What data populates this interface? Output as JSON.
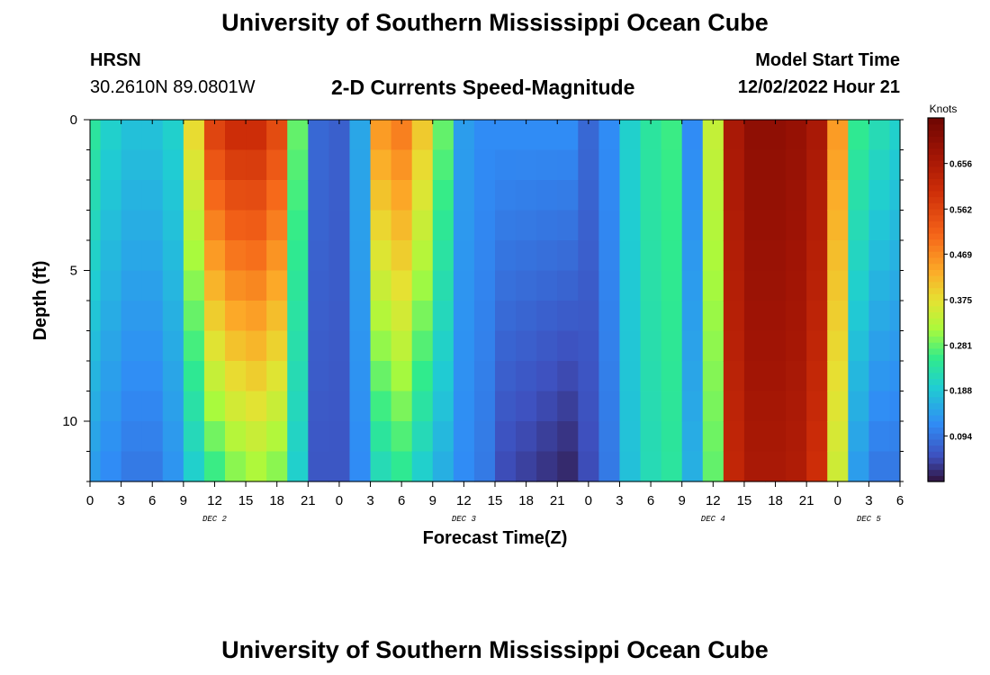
{
  "header": {
    "title": "University of Southern Mississippi Ocean Cube",
    "station": "HRSN",
    "coordinates": "30.2610N  89.0801W",
    "subtitle": "2-D Currents Speed-Magnitude",
    "model_start_label": "Model Start Time",
    "model_start_time": "12/02/2022 Hour 21"
  },
  "footer": {
    "title": "University of Southern Mississippi Ocean Cube"
  },
  "chart_data": {
    "type": "heatmap",
    "title": "2-D Currents Speed-Magnitude",
    "xlabel": "Forecast Time(Z)",
    "ylabel": "Depth (ft)",
    "x_tick_labels": [
      "0",
      "3",
      "6",
      "9",
      "12",
      "15",
      "18",
      "21",
      "0",
      "3",
      "6",
      "9",
      "12",
      "15",
      "18",
      "21",
      "0",
      "3",
      "6",
      "9",
      "12",
      "15",
      "18",
      "21",
      "0",
      "3",
      "6"
    ],
    "y_tick_labels": [
      "0",
      "5",
      "10"
    ],
    "y_ticks": [
      0,
      5,
      10
    ],
    "ylim": [
      0,
      12
    ],
    "xlim_hours": [
      0,
      78
    ],
    "date_labels": [
      {
        "label": "DEC 2",
        "hour": 12
      },
      {
        "label": "DEC 3",
        "hour": 36
      },
      {
        "label": "DEC 4",
        "hour": 60
      },
      {
        "label": "DEC 5",
        "hour": 75
      }
    ],
    "colorbar": {
      "label": "Knots",
      "range": [
        0,
        0.75
      ],
      "ticks": [
        "0.656",
        "0.562",
        "0.469",
        "0.375",
        "0.281",
        "0.188",
        "0.094"
      ],
      "tick_values": [
        0.656,
        0.562,
        0.469,
        0.375,
        0.281,
        0.188,
        0.094
      ]
    },
    "profile_hours": [
      0,
      2,
      4,
      6,
      8,
      10,
      12,
      14,
      16,
      18,
      20,
      22,
      24,
      26,
      28,
      30,
      32,
      34,
      36,
      38,
      40,
      42,
      44,
      46,
      48,
      50,
      52,
      54,
      56,
      58,
      60,
      62,
      64,
      66,
      68,
      70,
      72,
      74,
      76,
      78
    ],
    "surface_speed": [
      0.24,
      0.2,
      0.18,
      0.18,
      0.2,
      0.38,
      0.56,
      0.6,
      0.6,
      0.55,
      0.28,
      0.08,
      0.07,
      0.15,
      0.45,
      0.48,
      0.4,
      0.28,
      0.14,
      0.12,
      0.12,
      0.12,
      0.12,
      0.12,
      0.08,
      0.12,
      0.2,
      0.24,
      0.26,
      0.12,
      0.34,
      0.66,
      0.7,
      0.7,
      0.69,
      0.66,
      0.45,
      0.25,
      0.22,
      0.2
    ],
    "bottom_speed": [
      0.14,
      0.12,
      0.1,
      0.1,
      0.13,
      0.2,
      0.26,
      0.3,
      0.32,
      0.3,
      0.2,
      0.06,
      0.06,
      0.12,
      0.22,
      0.25,
      0.2,
      0.16,
      0.12,
      0.1,
      0.05,
      0.04,
      0.03,
      0.02,
      0.05,
      0.1,
      0.18,
      0.22,
      0.24,
      0.16,
      0.28,
      0.62,
      0.66,
      0.66,
      0.65,
      0.6,
      0.35,
      0.14,
      0.1,
      0.1
    ]
  }
}
